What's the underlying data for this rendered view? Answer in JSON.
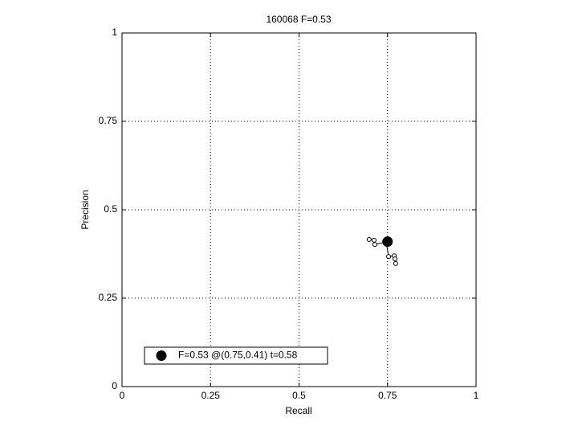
{
  "chart_data": {
    "type": "line",
    "title": "160068 F=0.53",
    "x_label": "Recall",
    "y_label": "Precision",
    "xlim": [
      0,
      1
    ],
    "ylim": [
      0,
      1
    ],
    "xticks": [
      0,
      0.25,
      0.5,
      0.75,
      1
    ],
    "yticks": [
      0,
      0.25,
      0.5,
      0.75,
      1
    ],
    "grid": true,
    "legend": "lower left",
    "series": [
      {
        "color": "#000000",
        "marker": "open-circle",
        "x": [
          0.698,
          0.712,
          0.714,
          0.746,
          0.753,
          0.769,
          0.771,
          0.773
        ],
        "values": [
          0.416,
          0.414,
          0.402,
          0.409,
          0.368,
          0.37,
          0.361,
          0.348
        ]
      },
      {
        "name": "F=0.53 @(0.75,0.41) t=0.58",
        "color": "#000000",
        "marker": "filled-circle",
        "x": [
          0.75
        ],
        "values": [
          0.41
        ]
      }
    ]
  }
}
